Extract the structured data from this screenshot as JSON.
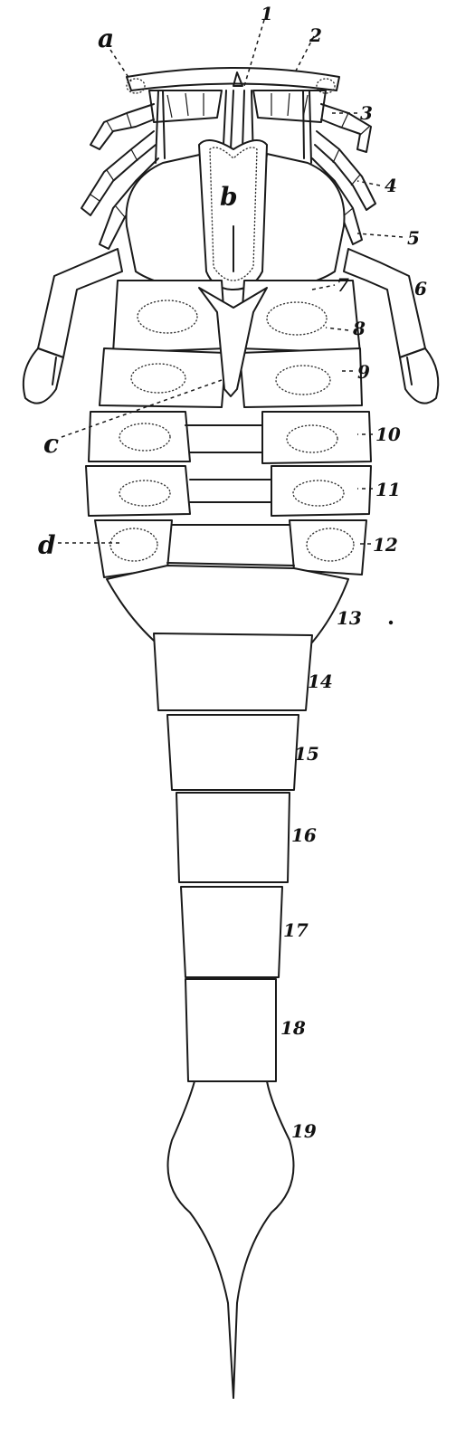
{
  "figure": {
    "letter_labels": [
      {
        "id": "a",
        "text": "a"
      },
      {
        "id": "b",
        "text": "b"
      },
      {
        "id": "c",
        "text": "c"
      },
      {
        "id": "d",
        "text": "d"
      }
    ],
    "number_labels": [
      "1",
      "2",
      "3",
      "4",
      "5",
      "6",
      "7",
      "8",
      "9",
      "10",
      "11",
      "12",
      "13",
      "14",
      "15",
      "16",
      "17",
      "18",
      "19"
    ]
  }
}
